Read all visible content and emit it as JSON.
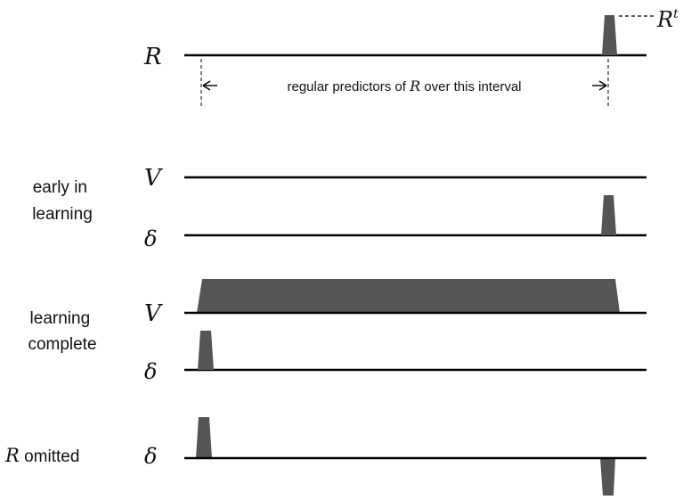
{
  "signals": {
    "reward_label": "R",
    "reward_annotation": "R",
    "reward_annotation_superscript": "t",
    "value_label": "V",
    "delta_label": "δ"
  },
  "interval": {
    "text_before": "regular predictors of ",
    "text_var": "R",
    "text_after": " over this interval"
  },
  "conditions": {
    "early": [
      "early in",
      "learning"
    ],
    "complete": [
      "learning",
      "complete"
    ],
    "omitted_var": "R",
    "omitted_text": " omitted"
  },
  "colors": {
    "line": "#000000",
    "pulse": "#555555",
    "text": "#111111"
  }
}
